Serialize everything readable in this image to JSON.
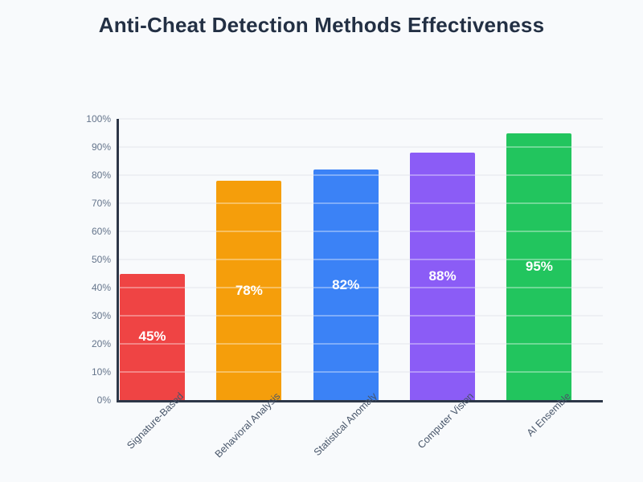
{
  "title": "Anti-Cheat Detection Methods Effectiveness",
  "chart_data": {
    "type": "bar",
    "title": "Anti-Cheat Detection Methods Effectiveness",
    "categories": [
      "Signature-Based",
      "Behavioral Analysis",
      "Statistical Anomaly",
      "Computer Vision",
      "AI Ensemble"
    ],
    "values": [
      45,
      78,
      82,
      88,
      95
    ],
    "value_labels": [
      "45%",
      "78%",
      "82%",
      "88%",
      "95%"
    ],
    "bar_colors": [
      "#ef4444",
      "#f59e0b",
      "#3b82f6",
      "#8b5cf6",
      "#22c55e"
    ],
    "xlabel": "",
    "ylabel": "",
    "ylim": [
      0,
      100
    ],
    "ytick_step": 10,
    "ytick_labels": [
      "0%",
      "10%",
      "20%",
      "30%",
      "40%",
      "50%",
      "60%",
      "70%",
      "80%",
      "90%",
      "100%"
    ],
    "grid": true,
    "legend": false
  },
  "colors": {
    "background": "#f8fafc",
    "axis": "#2d3748",
    "grid": "#e5e9ef",
    "grid_overlay": "rgba(255,255,255,0.35)",
    "title_text": "#233044",
    "tick_text": "#64748b",
    "category_text": "#475569",
    "value_label_text": "#ffffff"
  }
}
